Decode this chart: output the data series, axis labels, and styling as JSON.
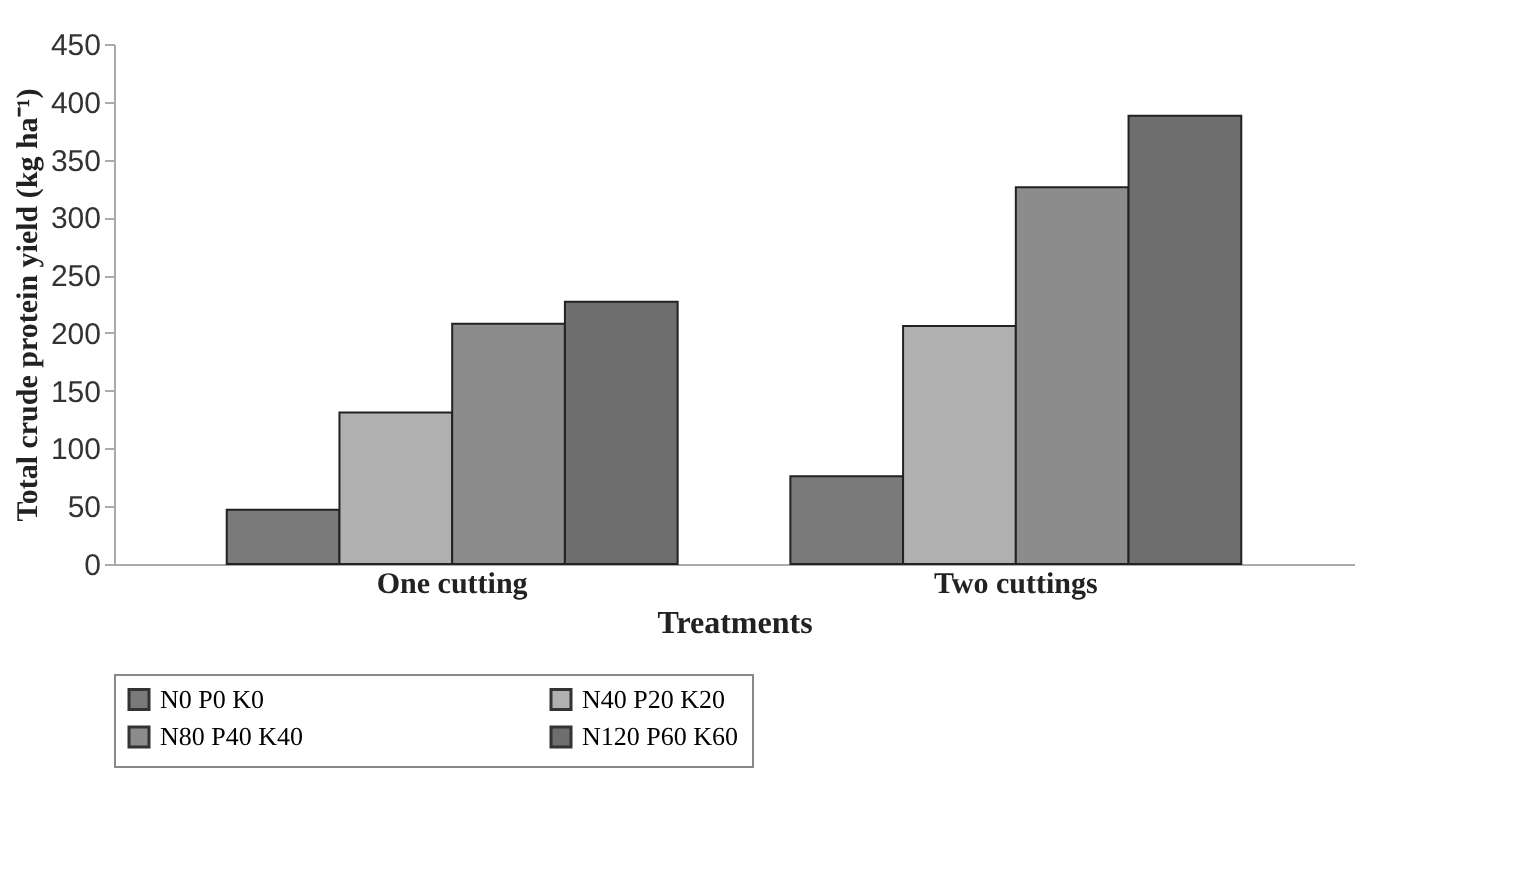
{
  "chart_data": {
    "type": "bar",
    "xlabel": "Treatments",
    "ylabel": "Total crude protein yield (kg ha⁻¹)",
    "categories": [
      "One cutting",
      "Two cuttings"
    ],
    "series": [
      {
        "name": "N0 P0 K0",
        "color": "#7a7a7a",
        "values": [
          47,
          76
        ]
      },
      {
        "name": "N40 P20 K20",
        "color": "#b0b0b0",
        "values": [
          131,
          206
        ]
      },
      {
        "name": "N80 P40 K40",
        "color": "#8c8c8c",
        "values": [
          208,
          326
        ]
      },
      {
        "name": "N120 P60 K60",
        "color": "#6e6e6e",
        "values": [
          227,
          388
        ]
      }
    ],
    "ylim": [
      0,
      450
    ],
    "yticks": [
      0,
      50,
      100,
      150,
      200,
      250,
      300,
      350,
      400,
      450
    ],
    "grid": false,
    "legend": "bottom"
  }
}
